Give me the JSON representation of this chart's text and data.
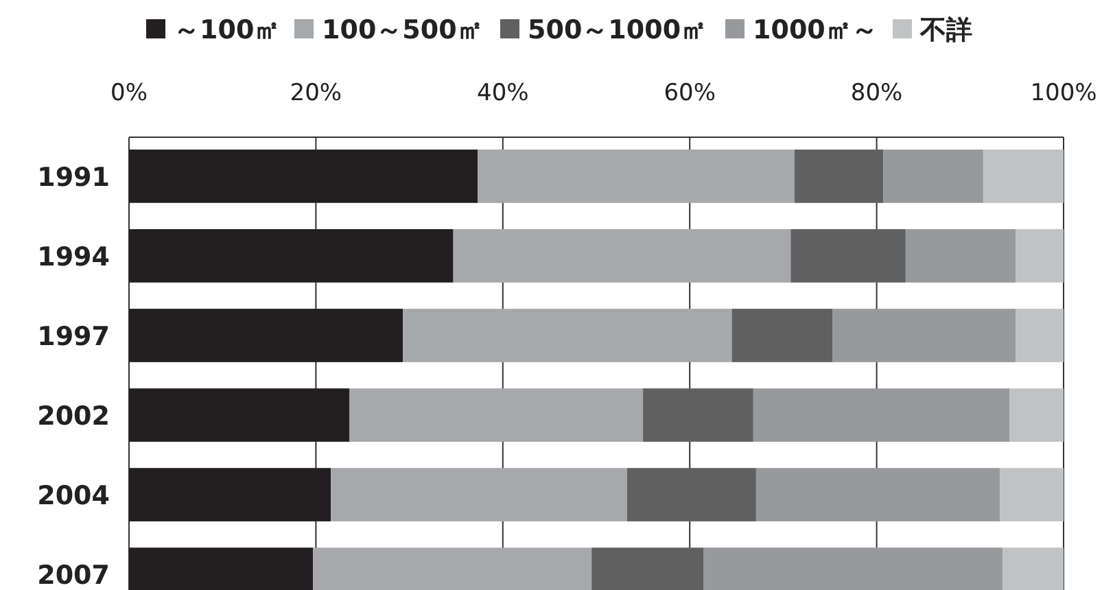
{
  "chart_data": {
    "type": "bar",
    "orientation": "horizontal",
    "stacked": true,
    "categories": [
      "1991",
      "1994",
      "1997",
      "2002",
      "2004",
      "2007"
    ],
    "series": [
      {
        "name": "～100㎡",
        "color": "#231f20",
        "values": [
          37.3,
          34.7,
          29.3,
          23.6,
          21.6,
          19.7
        ]
      },
      {
        "name": "100～500㎡",
        "color": "#a7a8ab",
        "values": [
          33.9,
          36.1,
          35.2,
          31.4,
          31.7,
          29.8
        ]
      },
      {
        "name": "500～1000㎡",
        "color": "#606060",
        "values": [
          9.5,
          12.3,
          10.8,
          11.8,
          13.8,
          12.0
        ]
      },
      {
        "name": "1000㎡～",
        "color": "#98999c",
        "values": [
          10.7,
          11.8,
          19.6,
          27.4,
          26.1,
          32.0
        ]
      },
      {
        "name": "不詳",
        "color": "#c1c2c4",
        "values": [
          8.6,
          5.1,
          5.1,
          5.8,
          6.8,
          6.5
        ]
      }
    ],
    "xlim": [
      0,
      100
    ],
    "xticks": [
      {
        "value": 0,
        "label": "0%"
      },
      {
        "value": 20,
        "label": "20%"
      },
      {
        "value": 40,
        "label": "40%"
      },
      {
        "value": 60,
        "label": "60%"
      },
      {
        "value": 80,
        "label": "80%"
      },
      {
        "value": 100,
        "label": "100%"
      }
    ],
    "grid": "x",
    "legend": "top"
  }
}
